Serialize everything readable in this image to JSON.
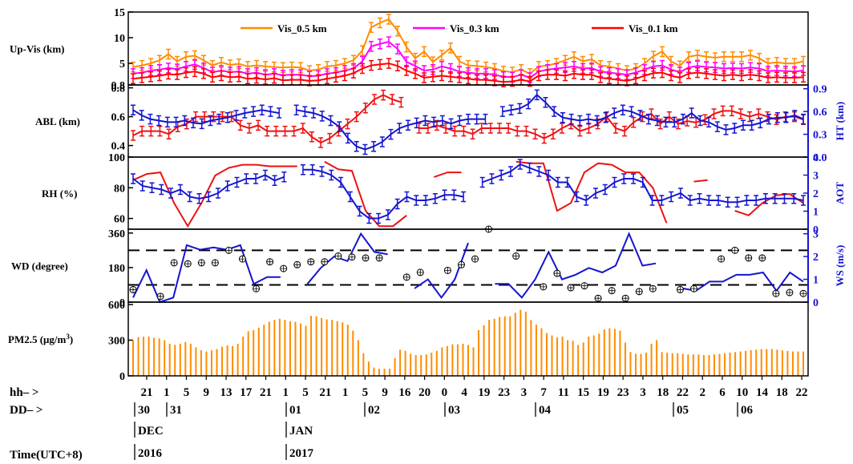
{
  "figure": {
    "time_axis": {
      "hh_prefix": "hh– >",
      "dd_prefix": "DD– >",
      "time_label": "Time(UTC+8)",
      "hours": [
        "21",
        "1",
        "5",
        "9",
        "13",
        "17",
        "21",
        "1",
        "5",
        "21",
        "1",
        "5",
        "9",
        "16",
        "20",
        "0",
        "4",
        "19",
        "23",
        "3",
        "7",
        "11",
        "15",
        "19",
        "23",
        "3",
        "18",
        "22",
        "2",
        "6",
        "10",
        "14",
        "18",
        "22"
      ],
      "days": [
        "30",
        "31",
        "01",
        "02",
        "03",
        "04",
        "05",
        "06"
      ],
      "months": [
        "DEC",
        "JAN"
      ],
      "years": [
        "2016",
        "2017"
      ]
    }
  },
  "chart_data": [
    {
      "type": "line",
      "ylabel": "Up-Vis (km)",
      "ylim": [
        0.8,
        15
      ],
      "yticks": [
        "0.8",
        "5",
        "10",
        "15"
      ],
      "legend_position": "top",
      "series": [
        {
          "name": "Vis_0.5 km",
          "color": "#ff8c00",
          "error_bars": true,
          "values": [
            4.3,
            4.6,
            5.0,
            5.6,
            6.8,
            5.4,
            6.3,
            6.5,
            5.6,
            4.6,
            5.2,
            4.7,
            4.9,
            4.4,
            4.6,
            4.4,
            4.3,
            4.2,
            4.3,
            4.2,
            3.6,
            3.8,
            4.4,
            4.6,
            5.0,
            5.6,
            7.5,
            12.0,
            12.9,
            13.6,
            11.3,
            8.2,
            6.0,
            7.3,
            5.3,
            6.6,
            8.0,
            5.4,
            4.6,
            4.5,
            4.3,
            4.0,
            3.5,
            3.3,
            3.8,
            3.0,
            4.4,
            4.6,
            5.0,
            5.6,
            6.3,
            5.4,
            5.8,
            4.6,
            4.4,
            4.0,
            3.6,
            4.0,
            5.0,
            6.4,
            7.3,
            5.4,
            4.5,
            6.3,
            6.6,
            6.3,
            6.1,
            6.3,
            6.3,
            6.3,
            6.6,
            6.0,
            5.0,
            5.2,
            5.0,
            5.0,
            5.4
          ]
        },
        {
          "name": "Vis_0.3 km",
          "color": "#ff00ff",
          "error_bars": true,
          "values": [
            3.0,
            3.2,
            3.6,
            3.8,
            4.1,
            3.9,
            4.4,
            4.8,
            4.1,
            3.3,
            3.6,
            3.3,
            3.4,
            3.0,
            3.2,
            2.8,
            3.0,
            2.7,
            2.8,
            2.8,
            2.5,
            2.6,
            3.0,
            3.2,
            3.6,
            4.0,
            5.4,
            8.3,
            8.8,
            9.2,
            7.8,
            5.3,
            4.5,
            3.6,
            3.8,
            4.4,
            4.0,
            3.4,
            3.2,
            3.0,
            3.0,
            2.8,
            2.4,
            2.3,
            2.8,
            2.2,
            3.4,
            3.8,
            4.0,
            4.2,
            4.4,
            4.0,
            4.1,
            3.4,
            3.2,
            3.0,
            2.8,
            3.2,
            3.8,
            4.4,
            4.6,
            3.8,
            3.3,
            4.2,
            4.5,
            4.3,
            4.2,
            4.0,
            4.1,
            4.0,
            4.2,
            4.0,
            3.5,
            3.6,
            3.5,
            3.4,
            3.6
          ]
        },
        {
          "name": "Vis_0.1 km",
          "color": "#ff0000",
          "error_bars": true,
          "values": [
            2.0,
            2.2,
            2.4,
            2.6,
            2.9,
            2.8,
            3.2,
            3.4,
            3.0,
            2.3,
            2.6,
            2.3,
            2.4,
            2.0,
            2.1,
            1.9,
            2.1,
            1.7,
            1.8,
            1.8,
            1.6,
            1.7,
            2.0,
            2.3,
            2.6,
            3.1,
            4.0,
            4.6,
            4.8,
            5.0,
            4.5,
            3.6,
            3.0,
            2.2,
            2.4,
            2.6,
            2.4,
            2.2,
            2.0,
            1.8,
            1.8,
            1.6,
            1.4,
            1.5,
            1.8,
            1.5,
            2.6,
            2.8,
            2.8,
            2.6,
            3.0,
            2.8,
            2.8,
            2.2,
            2.0,
            1.8,
            1.6,
            2.0,
            2.6,
            3.1,
            3.2,
            2.6,
            2.2,
            3.0,
            3.2,
            3.0,
            2.8,
            2.6,
            2.8,
            2.6,
            2.8,
            2.6,
            2.2,
            2.3,
            2.2,
            2.2,
            2.3
          ]
        }
      ]
    },
    {
      "type": "line",
      "ylabel": "ABL (km)",
      "ylim": [
        0.32,
        0.82
      ],
      "yticks": [
        "0.4",
        "0.6",
        "0.8"
      ],
      "y2label": "HT (km)",
      "y2lim": [
        0.0,
        0.95
      ],
      "y2ticks": [
        "0.0",
        "0.3",
        "0.6",
        "0.9"
      ],
      "series": [
        {
          "name": "ABL",
          "axis": "left",
          "color": "#ee1111",
          "error_bars": true,
          "values": [
            0.47,
            0.5,
            0.5,
            0.5,
            0.48,
            0.53,
            0.55,
            0.6,
            0.6,
            0.6,
            0.6,
            0.6,
            0.54,
            0.52,
            0.54,
            0.5,
            0.5,
            0.5,
            0.5,
            0.52,
            0.46,
            0.42,
            0.45,
            0.5,
            0.55,
            0.6,
            0.66,
            0.72,
            0.75,
            0.72,
            0.7,
            null,
            0.52,
            0.52,
            0.54,
            0.52,
            0.5,
            0.5,
            0.48,
            0.52,
            0.52,
            0.52,
            0.52,
            0.5,
            0.5,
            0.48,
            0.45,
            0.48,
            0.52,
            0.55,
            0.5,
            0.52,
            0.55,
            0.6,
            0.52,
            0.5,
            0.56,
            0.6,
            0.62,
            0.55,
            0.6,
            0.55,
            0.57,
            0.56,
            0.58,
            0.62,
            0.64,
            0.64,
            0.62,
            0.6,
            0.62,
            0.6,
            0.58,
            0.6,
            0.6,
            0.58
          ]
        },
        {
          "name": "HT",
          "axis": "right",
          "color": "#1515d0",
          "error_bars": true,
          "values": [
            0.62,
            0.55,
            0.5,
            0.48,
            0.46,
            0.46,
            0.48,
            0.45,
            0.44,
            0.48,
            0.5,
            0.52,
            0.55,
            0.58,
            0.6,
            0.62,
            0.6,
            0.58,
            null,
            0.62,
            0.6,
            0.58,
            0.54,
            0.48,
            0.4,
            0.25,
            0.14,
            0.1,
            0.14,
            0.2,
            0.3,
            0.38,
            0.42,
            0.45,
            0.48,
            0.46,
            0.48,
            0.44,
            0.48,
            0.5,
            0.5,
            0.5,
            null,
            0.6,
            0.62,
            0.64,
            0.7,
            0.82,
            0.72,
            0.6,
            0.52,
            0.5,
            0.48,
            0.5,
            0.48,
            0.52,
            0.58,
            0.62,
            0.6,
            0.55,
            0.5,
            0.48,
            0.46,
            0.46,
            0.5,
            0.58,
            0.48,
            0.46,
            0.4,
            0.36,
            0.38,
            0.42,
            0.42,
            0.45,
            0.5,
            0.52,
            0.52,
            0.55,
            0.5
          ]
        }
      ]
    },
    {
      "type": "line",
      "ylabel": "RH (%)",
      "ylim": [
        53,
        100
      ],
      "yticks": [
        "60",
        "80",
        "100"
      ],
      "y2label": "AOT",
      "y2lim": [
        0,
        4
      ],
      "y2ticks": [
        "0",
        "1",
        "2",
        "3",
        "4"
      ],
      "series": [
        {
          "name": "RH",
          "axis": "left",
          "color": "#ee1111",
          "error_bars": false,
          "values": [
            85,
            89,
            90,
            70,
            55,
            70,
            88,
            93,
            95,
            95,
            94,
            94,
            94,
            null,
            97,
            92,
            91,
            65,
            55,
            55,
            62,
            null,
            87,
            90,
            90,
            null,
            62,
            null,
            97,
            96,
            96,
            65,
            70,
            90,
            96,
            95,
            90,
            90,
            80,
            57,
            null,
            84,
            85,
            null,
            65,
            62,
            70,
            75,
            76,
            70
          ]
        },
        {
          "name": "AOT",
          "axis": "right",
          "color": "#1515d0",
          "error_bars": true,
          "values": [
            2.8,
            2.4,
            2.3,
            2.2,
            2.0,
            2.2,
            1.8,
            1.7,
            1.8,
            2.0,
            2.4,
            2.6,
            2.8,
            2.8,
            3.0,
            2.7,
            2.9,
            null,
            3.3,
            3.3,
            3.2,
            3.0,
            2.6,
            1.8,
            1.0,
            0.6,
            0.6,
            0.8,
            1.4,
            1.8,
            1.6,
            1.6,
            1.7,
            1.9,
            1.9,
            1.8,
            null,
            2.6,
            2.8,
            3.0,
            3.2,
            3.6,
            3.4,
            3.2,
            3.0,
            2.6,
            2.6,
            1.8,
            1.6,
            2.0,
            2.2,
            2.6,
            2.8,
            2.8,
            2.6,
            1.6,
            1.6,
            1.8,
            2.0,
            1.6,
            1.7,
            1.6,
            1.6,
            1.5,
            1.5,
            1.6,
            1.6,
            1.7,
            1.7,
            1.7,
            1.7,
            1.6
          ]
        }
      ]
    },
    {
      "type": "scatter",
      "ylabel": "WD (degree)",
      "ylim": [
        0,
        380
      ],
      "yticks": [
        "0",
        "180",
        "360"
      ],
      "reference_lines": [
        90,
        270
      ],
      "y2label": "WS (m/s)",
      "y2lim": [
        0,
        3.2
      ],
      "y2ticks": [
        "0",
        "1",
        "2",
        "3"
      ],
      "series": [
        {
          "name": "WD",
          "axis": "left",
          "marker": "circle-plus",
          "values": [
            65,
            null,
            30,
            205,
            200,
            205,
            205,
            270,
            225,
            70,
            210,
            175,
            195,
            210,
            210,
            240,
            235,
            230,
            230,
            null,
            130,
            155,
            null,
            165,
            195,
            225,
            380,
            null,
            240,
            null,
            80,
            150,
            75,
            85,
            20,
            60,
            20,
            55,
            70,
            null,
            65,
            70,
            null,
            225,
            270,
            230,
            230,
            45,
            50,
            45
          ]
        },
        {
          "name": "WS",
          "axis": "right",
          "color": "#1515d0",
          "error_bars": false,
          "values": [
            0.2,
            1.4,
            0,
            0.2,
            2.5,
            2.3,
            2.4,
            2.3,
            2.5,
            0.8,
            1.1,
            1.1,
            null,
            0.8,
            1.5,
            2.0,
            1.8,
            3.0,
            2.2,
            2.1,
            null,
            0.6,
            1.0,
            0.2,
            1.0,
            2.6,
            null,
            0.8,
            0.8,
            0.2,
            1.0,
            2.2,
            1.0,
            1.2,
            1.5,
            1.3,
            1.6,
            3.0,
            1.6,
            1.7,
            null,
            0.6,
            0.5,
            0.9,
            0.9,
            1.2,
            1.2,
            1.3,
            0.5,
            1.3,
            0.9
          ]
        }
      ]
    },
    {
      "type": "bar",
      "ylabel": "PM2.5 (μg/m",
      "ylabel_superscript": "3",
      "ylabel_close": ")",
      "ylim": [
        0,
        620
      ],
      "yticks": [
        "0",
        "300",
        "600"
      ],
      "color": "#ff8c00",
      "values": [
        300,
        325,
        330,
        330,
        320,
        315,
        300,
        270,
        260,
        270,
        285,
        270,
        240,
        215,
        205,
        215,
        225,
        245,
        255,
        250,
        270,
        330,
        375,
        385,
        405,
        430,
        455,
        470,
        480,
        470,
        460,
        455,
        440,
        420,
        505,
        500,
        485,
        475,
        470,
        460,
        450,
        430,
        380,
        300,
        190,
        120,
        70,
        60,
        60,
        60,
        150,
        220,
        210,
        185,
        175,
        175,
        180,
        195,
        210,
        240,
        250,
        265,
        265,
        270,
        260,
        240,
        385,
        425,
        470,
        480,
        495,
        500,
        500,
        530,
        555,
        540,
        470,
        430,
        400,
        360,
        340,
        325,
        330,
        300,
        295,
        260,
        280,
        330,
        340,
        355,
        390,
        400,
        395,
        380,
        280,
        200,
        185,
        185,
        195,
        270,
        300,
        200,
        195,
        190,
        190,
        185,
        180,
        180,
        180,
        175,
        175,
        180,
        185,
        190,
        195,
        200,
        205,
        210,
        215,
        220,
        225,
        225,
        225,
        220,
        215,
        210,
        205,
        205,
        205
      ]
    }
  ]
}
